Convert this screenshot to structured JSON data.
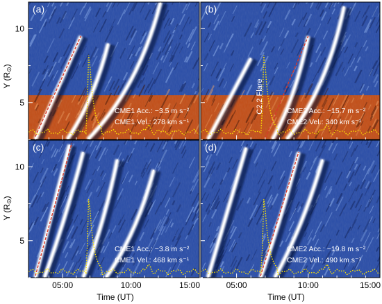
{
  "figure": {
    "y_axis_label": "Y (R",
    "y_axis_label_sub": "⊙",
    "y_axis_label_close": ")",
    "x_axis_label": "Time (UT)"
  },
  "chart_data": [
    {
      "type": "heatmap",
      "panel_label": "(a)",
      "position": "top-left",
      "background": "running-difference time-distance map",
      "ylim": [
        2.5,
        11.8
      ],
      "yticks": [
        "5",
        "10"
      ],
      "xlim": [
        "02:30",
        "15:00"
      ],
      "xticks": [],
      "colors": {
        "upper": "#2c4fa8",
        "lower": "#c2501a",
        "fit": "#d73a2a",
        "flux": "#ffe600"
      },
      "color_split_y": 5.5,
      "annotations": [
        "CME1 Acc.: −3.5 m s⁻²",
        "CME1 Vel.: 278 km s⁻¹"
      ],
      "fronts": [
        {
          "t": [
            "03:00",
            "06:20"
          ],
          "y": [
            2.5,
            9.5
          ],
          "curve": 0.0
        },
        {
          "t": [
            "05:20",
            "08:20"
          ],
          "y": [
            2.5,
            9.0
          ],
          "curve": 0.3
        },
        {
          "t": [
            "06:50",
            "12:10"
          ],
          "y": [
            2.5,
            11.8
          ],
          "curve": 0.4
        }
      ],
      "fit_line": {
        "t": [
          "03:00",
          "06:20"
        ],
        "y": [
          2.7,
          9.5
        ]
      },
      "flare_flux": {
        "t_peak": "06:57",
        "baseline_y": 3.0,
        "peak_y": 8.2
      }
    },
    {
      "type": "heatmap",
      "panel_label": "(b)",
      "position": "top-right",
      "background": "running-difference time-distance map",
      "ylim": [
        2.5,
        11.8
      ],
      "yticks": [],
      "xlim": [
        "02:30",
        "15:00"
      ],
      "xticks": [],
      "colors": {
        "upper": "#2c4fa8",
        "lower": "#c2501a",
        "fit": "#d73a2a",
        "flux": "#ffe600"
      },
      "color_split_y": 5.5,
      "annotations": [
        "CME2 Acc.: −15.7 m s⁻²",
        "CME2 Vel.: 340 km s⁻¹"
      ],
      "vertical_label": "C2.2 Flare",
      "fronts": [
        {
          "t": [
            "03:00",
            "06:00"
          ],
          "y": [
            2.5,
            8.0
          ],
          "curve": 0.0
        },
        {
          "t": [
            "07:30",
            "10:00"
          ],
          "y": [
            2.5,
            9.5
          ],
          "curve": 0.3
        },
        {
          "t": [
            "08:30",
            "12:30"
          ],
          "y": [
            2.5,
            11.5
          ],
          "curve": 0.4
        }
      ],
      "fit_line": {
        "t": [
          "07:00",
          "10:00"
        ],
        "y": [
          2.6,
          9.5
        ]
      },
      "flare_flux": {
        "t_peak": "06:57",
        "baseline_y": 3.0,
        "peak_y": 8.2
      }
    },
    {
      "type": "heatmap",
      "panel_label": "(c)",
      "position": "bottom-left",
      "background": "running-difference time-distance map",
      "ylim": [
        2.5,
        11.8
      ],
      "yticks": [
        "5",
        "10"
      ],
      "xlim": [
        "02:30",
        "15:00"
      ],
      "xticks": [
        "05:00",
        "10:00",
        "15:00"
      ],
      "colors": {
        "upper": "#2c4fa8",
        "lower": "#2c4fa8",
        "fit": "#d73a2a",
        "flux": "#ffe600"
      },
      "color_split_y": 2.5,
      "annotations": [
        "CME1 Acc.: −3.8 m s⁻²",
        "CME1 Vel.: 468 km s⁻¹"
      ],
      "fronts": [
        {
          "t": [
            "03:00",
            "05:30"
          ],
          "y": [
            2.5,
            11.5
          ],
          "curve": 0.0
        },
        {
          "t": [
            "03:40",
            "06:30"
          ],
          "y": [
            2.5,
            11.0
          ],
          "curve": 0.1
        },
        {
          "t": [
            "06:30",
            "09:00"
          ],
          "y": [
            2.5,
            10.5
          ],
          "curve": 0.2
        },
        {
          "t": [
            "08:10",
            "11:40"
          ],
          "y": [
            2.5,
            9.8
          ],
          "curve": 0.3
        }
      ],
      "fit_line": {
        "t": [
          "03:00",
          "05:40"
        ],
        "y": [
          2.6,
          11.6
        ]
      },
      "flare_flux": {
        "t_peak": "06:57",
        "baseline_y": 2.9,
        "peak_y": 7.8
      }
    },
    {
      "type": "heatmap",
      "panel_label": "(d)",
      "position": "bottom-right",
      "background": "running-difference time-distance map",
      "ylim": [
        2.5,
        11.8
      ],
      "yticks": [],
      "xlim": [
        "02:30",
        "15:00"
      ],
      "xticks": [
        "05:00",
        "10:00",
        "15:00"
      ],
      "colors": {
        "upper": "#2c4fa8",
        "lower": "#2c4fa8",
        "fit": "#d73a2a",
        "flux": "#ffe600"
      },
      "color_split_y": 2.5,
      "annotations": [
        "CME2 Acc.: −19.8 m s⁻²",
        "CME2 Vel.: 490 km s⁻¹"
      ],
      "fronts": [
        {
          "t": [
            "03:00",
            "05:40"
          ],
          "y": [
            2.5,
            11.3
          ],
          "curve": 0.0
        },
        {
          "t": [
            "06:40",
            "09:20"
          ],
          "y": [
            2.5,
            11.0
          ],
          "curve": 0.1
        },
        {
          "t": [
            "07:40",
            "11:00"
          ],
          "y": [
            2.5,
            10.5
          ],
          "curve": 0.2
        }
      ],
      "fit_line": {
        "t": [
          "06:40",
          "09:20"
        ],
        "y": [
          2.6,
          11.0
        ]
      },
      "flare_flux": {
        "t_peak": "06:57",
        "baseline_y": 2.9,
        "peak_y": 7.8
      }
    }
  ]
}
